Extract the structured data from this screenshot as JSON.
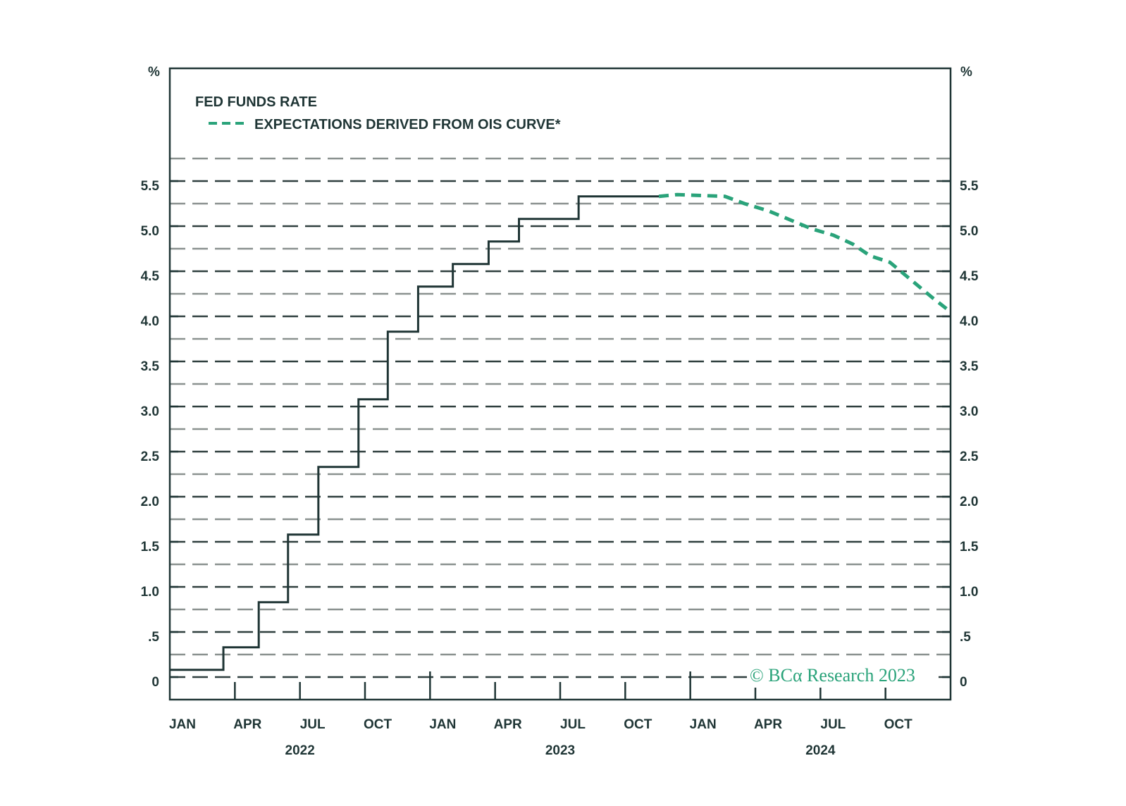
{
  "chart_data": {
    "type": "line",
    "title": "",
    "ylabel_left": "%",
    "ylabel_right": "%",
    "ylim": [
      -0.25,
      6.75
    ],
    "y_ticks": [
      0,
      0.5,
      1.0,
      1.5,
      2.0,
      2.5,
      3.0,
      3.5,
      4.0,
      4.5,
      5.0,
      5.5
    ],
    "y_tick_labels": [
      "0",
      ".5",
      "1.0",
      "1.5",
      "2.0",
      "2.5",
      "3.0",
      "3.5",
      "4.0",
      "4.5",
      "5.0",
      "5.5"
    ],
    "grid_step": 0.25,
    "x_unit": "months since Jan 2022",
    "xlim": [
      0,
      36
    ],
    "x_tick_labels": [
      "JAN",
      "APR",
      "JUL",
      "OCT",
      "JAN",
      "APR",
      "JUL",
      "OCT",
      "JAN",
      "APR",
      "JUL",
      "OCT"
    ],
    "year_labels": [
      "2022",
      "2023",
      "2024"
    ],
    "legend": {
      "placement": "top-left",
      "entries": [
        "FED FUNDS RATE",
        "EXPECTATIONS DERIVED FROM OIS CURVE*"
      ]
    },
    "series": [
      {
        "name": "FED FUNDS RATE",
        "style": "step",
        "color": "#1f3535",
        "points": [
          [
            0,
            0.08
          ],
          [
            2.47,
            0.33
          ],
          [
            4.1,
            0.83
          ],
          [
            5.45,
            1.58
          ],
          [
            6.85,
            2.33
          ],
          [
            8.7,
            3.08
          ],
          [
            10.05,
            3.83
          ],
          [
            11.45,
            4.33
          ],
          [
            13.05,
            4.58
          ],
          [
            14.7,
            4.83
          ],
          [
            16.1,
            5.08
          ],
          [
            18.85,
            5.33
          ],
          [
            22.55,
            5.33
          ]
        ]
      },
      {
        "name": "EXPECTATIONS DERIVED FROM OIS CURVE*",
        "style": "dashed",
        "color": "#2aa37a",
        "points": [
          [
            22.55,
            5.33
          ],
          [
            23.4,
            5.35
          ],
          [
            24.5,
            5.34
          ],
          [
            25.6,
            5.33
          ],
          [
            26.5,
            5.25
          ],
          [
            27.6,
            5.17
          ],
          [
            28.6,
            5.07
          ],
          [
            29.6,
            4.97
          ],
          [
            30.6,
            4.9
          ],
          [
            31.5,
            4.8
          ],
          [
            32.3,
            4.67
          ],
          [
            33.2,
            4.6
          ],
          [
            34.1,
            4.42
          ],
          [
            35.2,
            4.2
          ],
          [
            36,
            4.05
          ]
        ]
      }
    ],
    "annotation": "© BCα Research 2023"
  }
}
